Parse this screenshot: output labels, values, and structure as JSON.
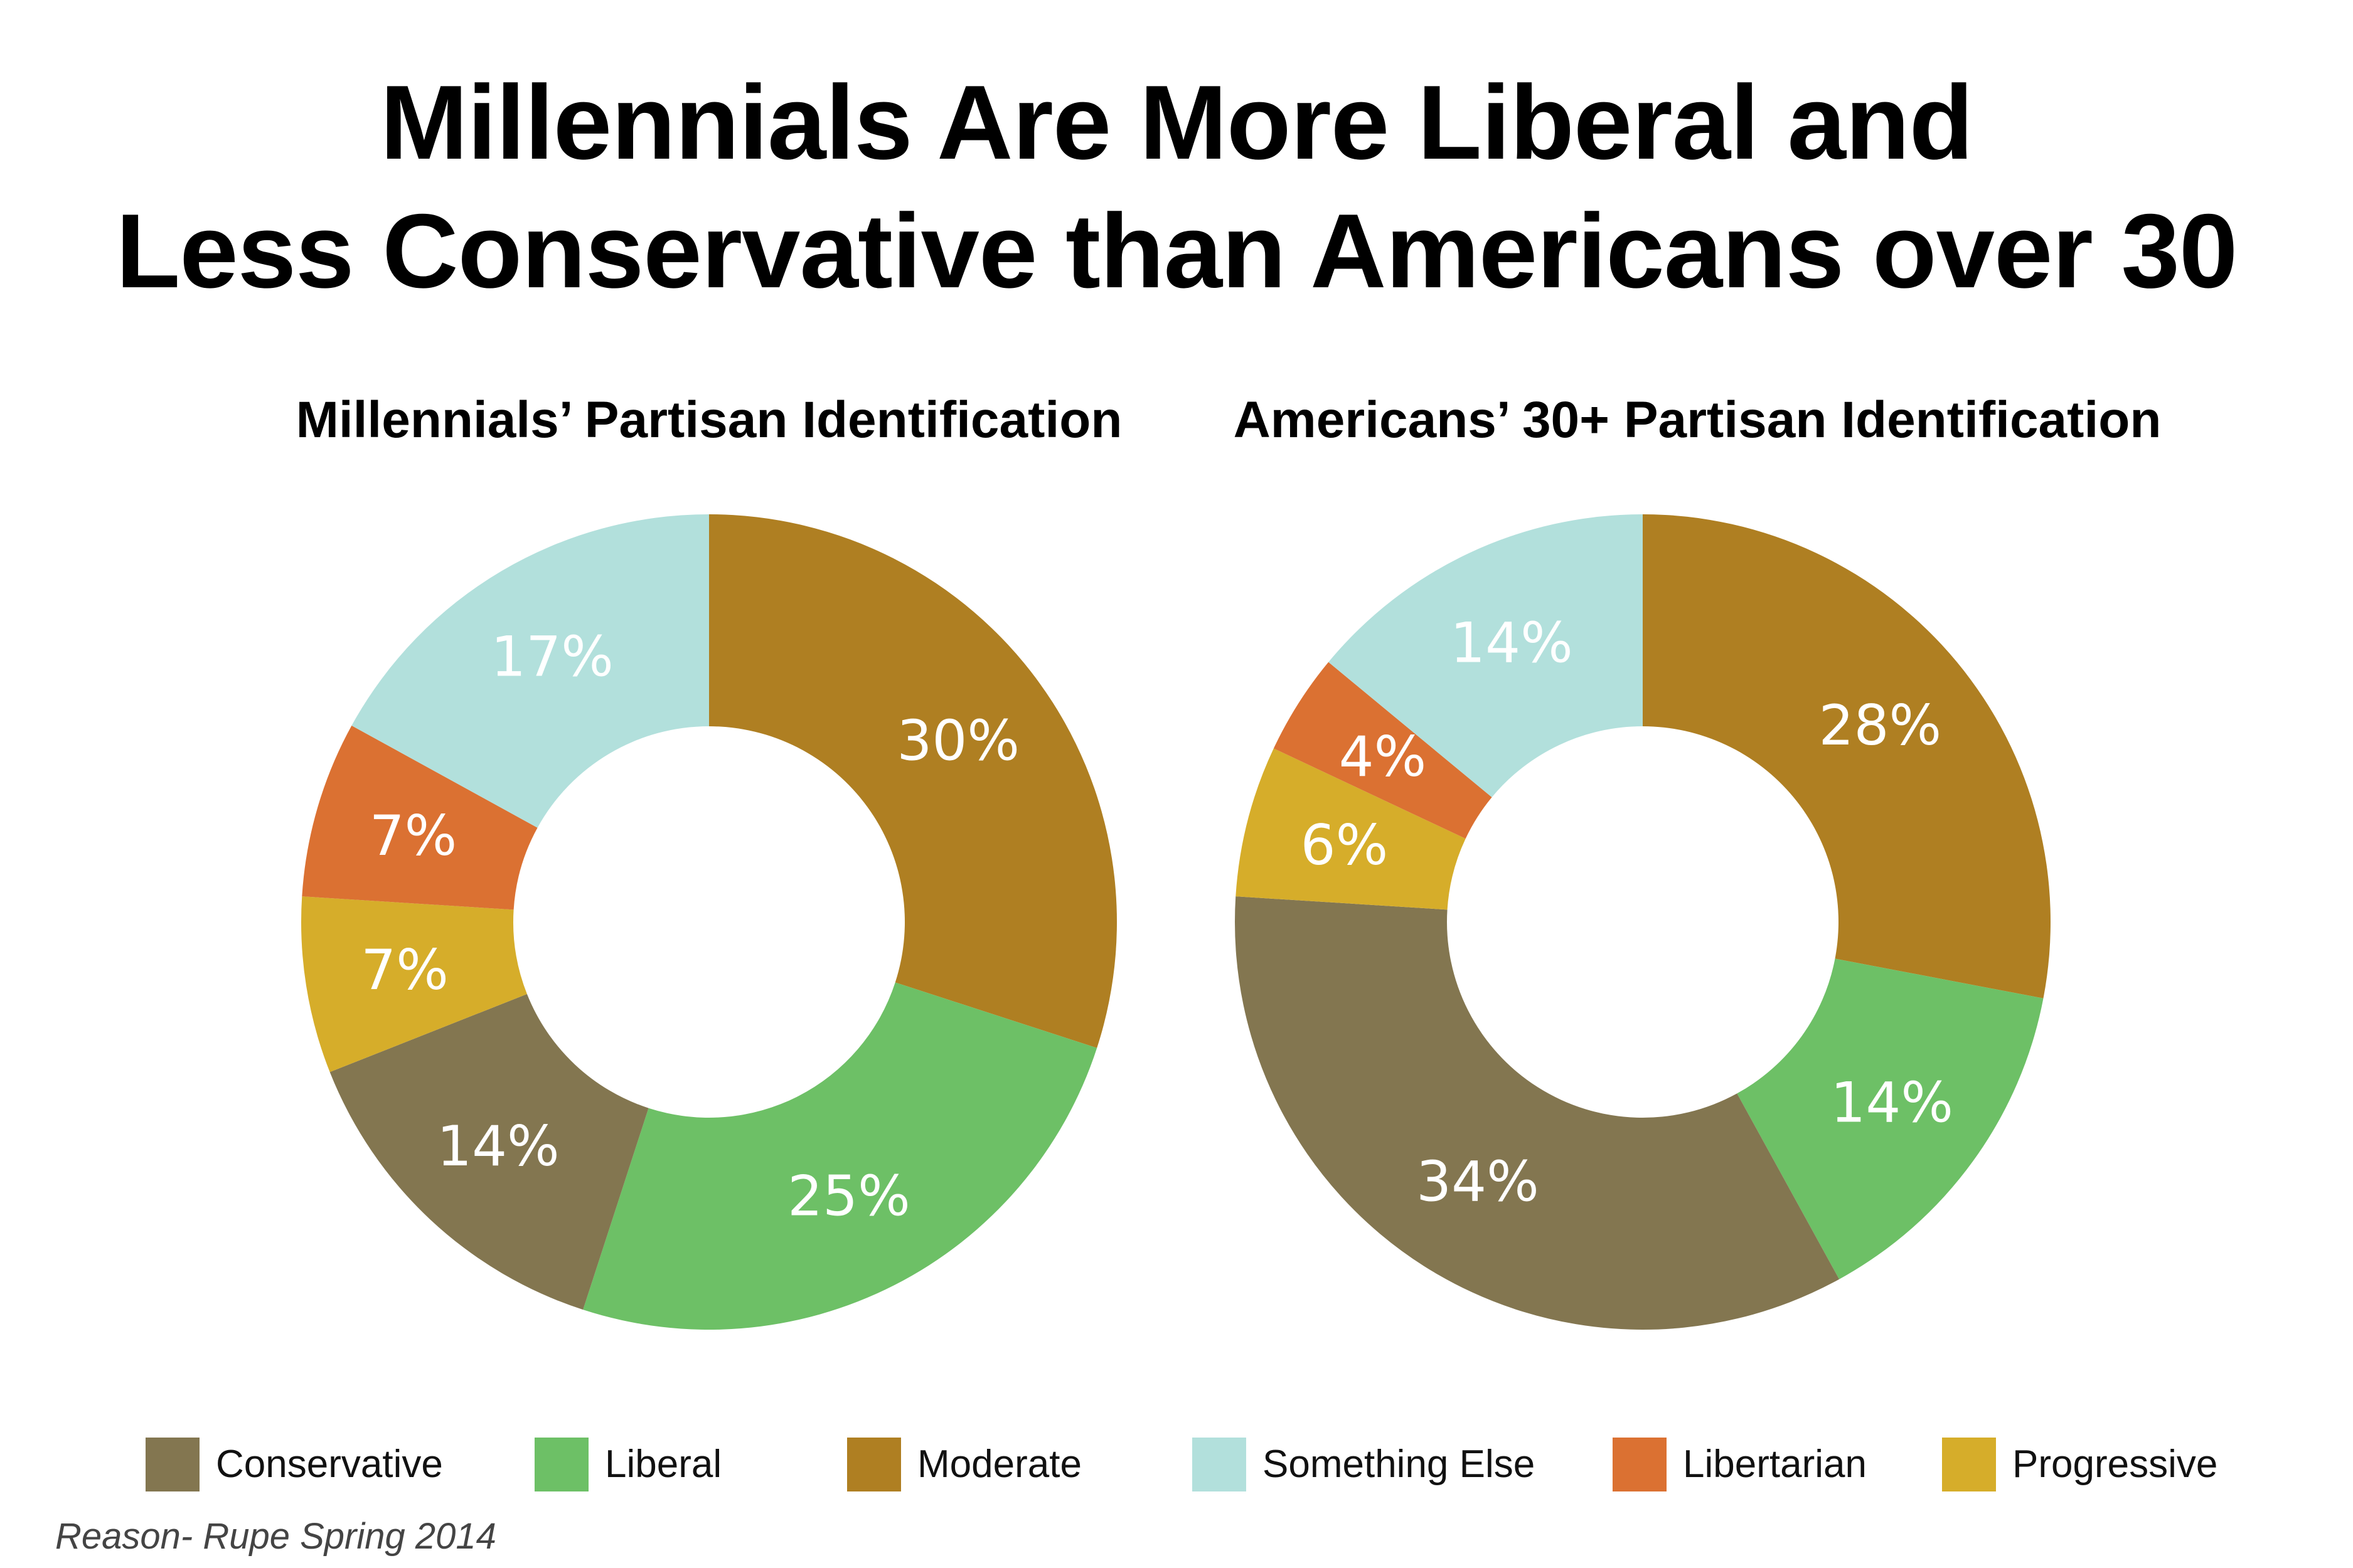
{
  "title_line1": "Millennials Are More Liberal and",
  "title_line2": "Less Conservative than Americans over 30",
  "source": "Reason- Rupe Spring 2014",
  "colors": {
    "Conservative": "#837650",
    "Liberal": "#6dc066",
    "Moderate": "#af7f22",
    "Something Else": "#b2e0dc",
    "Libertarian": "#db7132",
    "Progressive": "#d6ad2a"
  },
  "legend": [
    "Conservative",
    "Liberal",
    "Moderate",
    "Something Else",
    "Libertarian",
    "Progressive"
  ],
  "chart_data": [
    {
      "type": "pie",
      "title": "Millennials’ Partisan Identification",
      "donut": true,
      "slices": [
        {
          "category": "Moderate",
          "value": 30,
          "label": "30%"
        },
        {
          "category": "Liberal",
          "value": 25,
          "label": "25%"
        },
        {
          "category": "Conservative",
          "value": 14,
          "label": "14%"
        },
        {
          "category": "Progressive",
          "value": 7,
          "label": "7%"
        },
        {
          "category": "Libertarian",
          "value": 7,
          "label": "7%"
        },
        {
          "category": "Something Else",
          "value": 17,
          "label": "17%"
        }
      ]
    },
    {
      "type": "pie",
      "title": "Americans’ 30+ Partisan Identification",
      "donut": true,
      "slices": [
        {
          "category": "Moderate",
          "value": 28,
          "label": "28%"
        },
        {
          "category": "Liberal",
          "value": 14,
          "label": "14%"
        },
        {
          "category": "Conservative",
          "value": 34,
          "label": "34%"
        },
        {
          "category": "Progressive",
          "value": 6,
          "label": "6%"
        },
        {
          "category": "Libertarian",
          "value": 4,
          "label": "4%"
        },
        {
          "category": "Something Else",
          "value": 14,
          "label": "14%"
        }
      ]
    }
  ]
}
